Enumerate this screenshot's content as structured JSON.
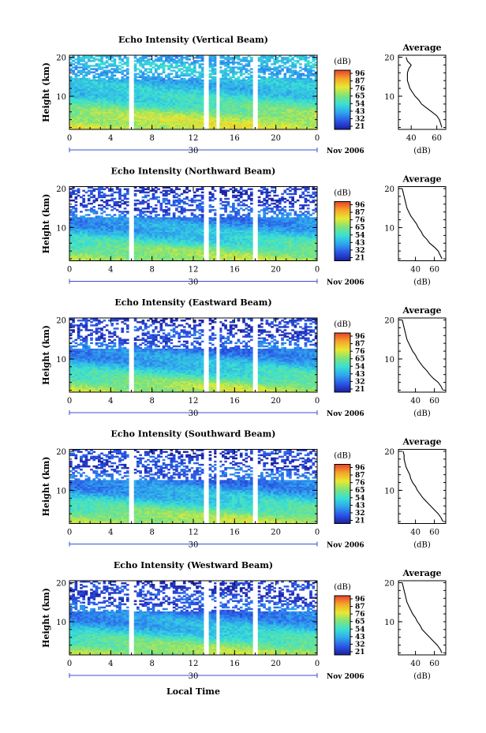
{
  "figure": {
    "xlabel": "Local Time",
    "date_month": "Nov 2006",
    "day_label": "30",
    "avg_title": "Average",
    "colorbar_unit": "(dB)",
    "avg_xunit": "(dB)",
    "colorbar_ticks": [
      "96",
      "87",
      "76",
      "65",
      "54",
      "43",
      "32",
      "21"
    ]
  },
  "chart_data": [
    {
      "type": "heatmap",
      "title": "Echo Intensity (Vertical Beam)",
      "ylabel": "Height (km)",
      "xlabel": "Local Time",
      "x_ticks": [
        "0",
        "4",
        "8",
        "12",
        "16",
        "20",
        "0"
      ],
      "y_ticks": [
        "10",
        "20"
      ],
      "xlim": [
        0,
        24
      ],
      "ylim": [
        1.5,
        20.5
      ],
      "gaps_hours": [
        6,
        13.2,
        14.4,
        18
      ],
      "profile": {
        "title": "Average",
        "xlabel": "(dB)",
        "x_ticks": [
          "40",
          "60"
        ],
        "xlim": [
          30,
          67
        ],
        "height_km": [
          2,
          3,
          4,
          5,
          6,
          7,
          8,
          9,
          10,
          11,
          12,
          13,
          14,
          15,
          16,
          17,
          18,
          19,
          20
        ],
        "mean_db": [
          64,
          63,
          62,
          60,
          56,
          52,
          48,
          46,
          43,
          41,
          39,
          38,
          37,
          37,
          37,
          38,
          40,
          37,
          36
        ]
      }
    },
    {
      "type": "heatmap",
      "title": "Echo Intensity (Northward Beam)",
      "ylabel": "Height (km)",
      "xlabel": "Local Time",
      "x_ticks": [
        "0",
        "4",
        "8",
        "12",
        "16",
        "20",
        "0"
      ],
      "y_ticks": [
        "10",
        "20"
      ],
      "xlim": [
        0,
        24
      ],
      "ylim": [
        1.5,
        20.5
      ],
      "gaps_hours": [
        6,
        13.2,
        14.4,
        18
      ],
      "profile": {
        "title": "Average",
        "xlabel": "(dB)",
        "x_ticks": [
          "40",
          "60"
        ],
        "xlim": [
          22,
          72
        ],
        "height_km": [
          2,
          3,
          4,
          5,
          6,
          7,
          8,
          9,
          10,
          11,
          12,
          13,
          14,
          15,
          16,
          17,
          18,
          19,
          20
        ],
        "mean_db": [
          68,
          66,
          64,
          60,
          55,
          52,
          48,
          46,
          43,
          41,
          38,
          35,
          33,
          31,
          30,
          29,
          28,
          27,
          26
        ]
      }
    },
    {
      "type": "heatmap",
      "title": "Echo Intensity (Eastward Beam)",
      "ylabel": "Height (km)",
      "xlabel": "Local Time",
      "x_ticks": [
        "0",
        "4",
        "8",
        "12",
        "16",
        "20",
        "0"
      ],
      "y_ticks": [
        "10",
        "20"
      ],
      "xlim": [
        0,
        24
      ],
      "ylim": [
        1.5,
        20.5
      ],
      "gaps_hours": [
        6,
        13.2,
        14.4,
        18
      ],
      "profile": {
        "title": "Average",
        "xlabel": "(dB)",
        "x_ticks": [
          "40",
          "60"
        ],
        "xlim": [
          22,
          72
        ],
        "height_km": [
          2,
          3,
          4,
          5,
          6,
          7,
          8,
          9,
          10,
          11,
          12,
          13,
          14,
          15,
          16,
          17,
          18,
          19,
          20
        ],
        "mean_db": [
          69,
          67,
          64,
          59,
          55,
          52,
          48,
          45,
          42,
          40,
          37,
          35,
          33,
          31,
          30,
          29,
          28,
          27,
          26
        ]
      }
    },
    {
      "type": "heatmap",
      "title": "Echo Intensity (Southward Beam)",
      "ylabel": "Height (km)",
      "xlabel": "Local Time",
      "x_ticks": [
        "0",
        "4",
        "8",
        "12",
        "16",
        "20",
        "0"
      ],
      "y_ticks": [
        "10",
        "20"
      ],
      "xlim": [
        0,
        24
      ],
      "ylim": [
        1.5,
        20.5
      ],
      "gaps_hours": [
        6,
        13.2,
        14.4,
        18
      ],
      "profile": {
        "title": "Average",
        "xlabel": "(dB)",
        "x_ticks": [
          "40",
          "60"
        ],
        "xlim": [
          22,
          72
        ],
        "height_km": [
          2,
          3,
          4,
          5,
          6,
          7,
          8,
          9,
          10,
          11,
          12,
          13,
          14,
          15,
          16,
          17,
          18,
          19,
          20
        ],
        "mean_db": [
          69,
          67,
          64,
          60,
          56,
          52,
          48,
          45,
          42,
          40,
          37,
          35,
          34,
          32,
          30,
          29,
          28,
          28,
          27
        ]
      }
    },
    {
      "type": "heatmap",
      "title": "Echo Intensity (Westward Beam)",
      "ylabel": "Height (km)",
      "xlabel": "Local Time",
      "x_ticks": [
        "0",
        "4",
        "8",
        "12",
        "16",
        "20",
        "0"
      ],
      "y_ticks": [
        "10",
        "20"
      ],
      "xlim": [
        0,
        24
      ],
      "ylim": [
        1.5,
        20.5
      ],
      "gaps_hours": [
        6,
        13.2,
        14.4,
        18
      ],
      "profile": {
        "title": "Average",
        "xlabel": "(dB)",
        "x_ticks": [
          "40",
          "60"
        ],
        "xlim": [
          22,
          72
        ],
        "height_km": [
          2,
          3,
          4,
          5,
          6,
          7,
          8,
          9,
          10,
          11,
          12,
          13,
          14,
          15,
          16,
          17,
          18,
          19,
          20
        ],
        "mean_db": [
          68,
          66,
          63,
          59,
          55,
          51,
          47,
          45,
          42,
          40,
          37,
          35,
          33,
          31,
          30,
          29,
          28,
          27,
          26
        ]
      }
    }
  ],
  "colors": {
    "colormap": [
      "#1a1f9e",
      "#2c55e6",
      "#2fa6ee",
      "#39e0d4",
      "#7fe37a",
      "#e8e832",
      "#f5a62a",
      "#e8402a"
    ],
    "axis": "#000000",
    "date_axis": "#3a4fd6"
  }
}
